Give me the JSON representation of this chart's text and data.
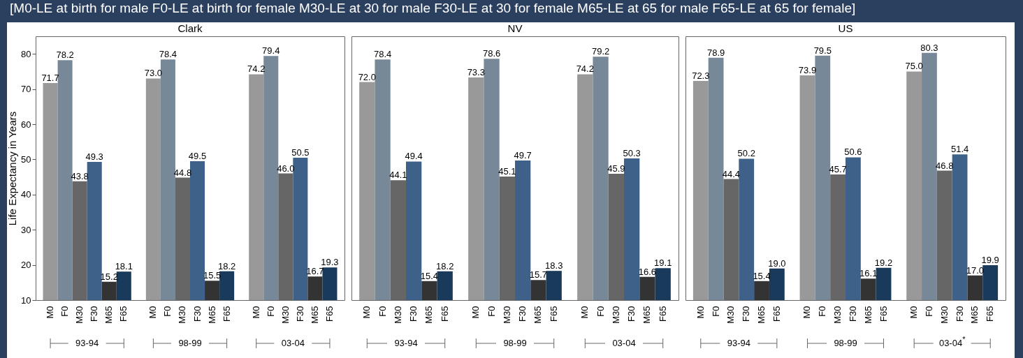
{
  "chart_data": [
    {
      "type": "bar",
      "title": "[M0-LE at birth for male F0-LE at birth for female M30-LE at 30 for male F30-LE at 30 for female M65-LE at 65 for male F65-LE at 65 for female]",
      "subtitle": "Clark",
      "ylabel": "Life Expectancy in Years",
      "categories": [
        "M0",
        "F0",
        "M30",
        "F30",
        "M65",
        "F65",
        "M0",
        "F0",
        "M30",
        "F30",
        "M65",
        "F65",
        "M0",
        "F0",
        "M30",
        "F30",
        "M65",
        "F65"
      ],
      "values": [
        71.7,
        78.2,
        43.8,
        49.3,
        15.2,
        18.1,
        73.0,
        78.4,
        44.8,
        49.5,
        15.5,
        18.2,
        74.2,
        79.4,
        46.0,
        50.5,
        16.7,
        19.3
      ],
      "value_labels": [
        "71.7",
        "78.2",
        "43.8",
        "49.3",
        "15.2",
        "18.1",
        "73.0",
        "78.4",
        "44.8",
        "49.5",
        "15.5",
        "18.2",
        "74.2",
        "79.4",
        "46.0",
        "50.5",
        "16.7",
        "19.3"
      ],
      "colors": [
        "#999999",
        "#778899",
        "#666666",
        "#3d6189",
        "#333333",
        "#1a3a5c",
        "#999999",
        "#778899",
        "#666666",
        "#3d6189",
        "#333333",
        "#1a3a5c",
        "#999999",
        "#778899",
        "#666666",
        "#3d6189",
        "#333333",
        "#1a3a5c"
      ],
      "annotations": [
        "93-94",
        "98-99",
        "03-04"
      ],
      "ylim": [
        10,
        85
      ],
      "yticks": [
        10,
        20,
        30,
        40,
        50,
        60,
        70,
        80
      ]
    },
    {
      "type": "bar",
      "subtitle": "NV",
      "categories": [
        "M0",
        "F0",
        "M30",
        "F30",
        "M65",
        "F65",
        "M0",
        "F0",
        "M30",
        "F30",
        "M65",
        "F65",
        "M0",
        "F0",
        "M30",
        "F30",
        "M65",
        "F65"
      ],
      "values": [
        72.0,
        78.4,
        44.1,
        49.4,
        15.4,
        18.2,
        73.3,
        78.6,
        45.1,
        49.7,
        15.7,
        18.3,
        74.2,
        79.2,
        45.9,
        50.3,
        16.6,
        19.1
      ],
      "value_labels": [
        "72.0",
        "78.4",
        "44.1",
        "49.4",
        "15.4",
        "18.2",
        "73.3",
        "78.6",
        "45.1",
        "49.7",
        "15.7",
        "18.3",
        "74.2",
        "79.2",
        "45.9",
        "50.3",
        "16.6",
        "19.1"
      ],
      "colors": [
        "#999999",
        "#778899",
        "#666666",
        "#3d6189",
        "#333333",
        "#1a3a5c",
        "#999999",
        "#778899",
        "#666666",
        "#3d6189",
        "#333333",
        "#1a3a5c",
        "#999999",
        "#778899",
        "#666666",
        "#3d6189",
        "#333333",
        "#1a3a5c"
      ],
      "annotations": [
        "93-94",
        "98-99",
        "03-04"
      ],
      "ylim": [
        10,
        85
      ],
      "yticks": [
        10,
        20,
        30,
        40,
        50,
        60,
        70,
        80
      ],
      "tick_labels": "x"
    },
    {
      "type": "bar",
      "subtitle": "US",
      "categories": [
        "M0",
        "F0",
        "M30",
        "F30",
        "M65",
        "F65",
        "M0",
        "F0",
        "M30",
        "F30",
        "M65",
        "F65",
        "M0",
        "F0",
        "M30",
        "F30",
        "M65",
        "F65"
      ],
      "values": [
        72.3,
        78.9,
        44.4,
        50.2,
        15.4,
        19.0,
        73.9,
        79.5,
        45.7,
        50.6,
        16.1,
        19.2,
        75.0,
        80.3,
        46.8,
        51.4,
        17.0,
        19.9
      ],
      "value_labels": [
        "72.3",
        "78.9",
        "44.4",
        "50.2",
        "15.4",
        "19.0",
        "73.9",
        "79.5",
        "45.7",
        "50.6",
        "16.1",
        "19.2",
        "75.0",
        "80.3",
        "46.8",
        "51.4",
        "17.0",
        "19.9"
      ],
      "colors": [
        "#999999",
        "#778899",
        "#666666",
        "#3d6189",
        "#333333",
        "#1a3a5c",
        "#999999",
        "#778899",
        "#666666",
        "#3d6189",
        "#333333",
        "#1a3a5c",
        "#999999",
        "#778899",
        "#666666",
        "#3d6189",
        "#333333",
        "#1a3a5c"
      ],
      "annotations": [
        "93-94",
        "98-99",
        "03-04$^{*}$"
      ],
      "ylim": [
        10,
        85
      ],
      "yticks": [
        10,
        20,
        30,
        40,
        50,
        60,
        70,
        80
      ],
      "tick_labels": "x"
    }
  ]
}
